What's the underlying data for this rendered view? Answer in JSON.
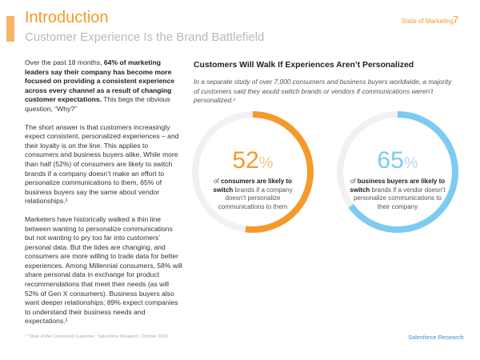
{
  "header": {
    "title": "Introduction",
    "subtitle": "Customer Experience Is the Brand Battlefield",
    "section": "State of Marketing",
    "page": "7"
  },
  "left": {
    "paragraphs": [
      [
        {
          "text": "Over the past 18 months, ",
          "bold": false
        },
        {
          "text": "64% of marketing leaders say their company has become more focused on providing a consistent experience across every channel as a result of changing customer expectations.",
          "bold": true
        },
        {
          "text": " This begs the obvious question, “Why?”",
          "bold": false
        }
      ],
      [
        {
          "text": "The short answer is that customers increasingly expect consistent, personalized experiences – and their loyalty is on the line. This applies to consumers and business buyers alike. While more than half (52%) of consumers are likely to switch brands if a company doesn’t make an effort to personalize communications to them, 65% of business buyers say the same about vendor relationships.¹",
          "bold": false
        }
      ],
      [
        {
          "text": "Marketers have historically walked a thin line between wanting to personalize communications but not wanting to pry too far into customers’ personal data. But the tides are changing, and consumers are more willing to trade data for better experiences. Among Millennial consumers, 58% will share personal data in exchange for product recommendations that meet their needs (as will 52% of Gen X consumers). Business buyers also want deeper relationships; 89% expect companies to understand their business needs and expectations.¹",
          "bold": false
        }
      ]
    ]
  },
  "right": {
    "heading": "Customers Will Walk If Experiences Aren’t Personalized",
    "intro": "In a separate study of over 7,000 consumers and business buyers worldwide, a majority of customers said they would switch brands or vendors if communications weren’t personalized.¹",
    "stats": [
      {
        "value": 52,
        "unit": "%",
        "color": "#f49a2b",
        "description": [
          {
            "text": "of ",
            "bold": false
          },
          {
            "text": "consumers are likely to switch",
            "bold": true
          },
          {
            "text": " brands if a company doesn’t personalize communications to them",
            "bold": false
          }
        ]
      },
      {
        "value": 65,
        "unit": "%",
        "color": "#7ccbf1",
        "description": [
          {
            "text": "of ",
            "bold": false
          },
          {
            "text": "business buyers are likely to switch",
            "bold": true
          },
          {
            "text": " brands if a vendor doesn’t personalize communications to their company",
            "bold": false
          }
        ]
      }
    ]
  },
  "footer": {
    "note": "¹ “State of the Connected Customer,” Salesforce Research, October 2016.",
    "brand": "Salesforce Research"
  }
}
